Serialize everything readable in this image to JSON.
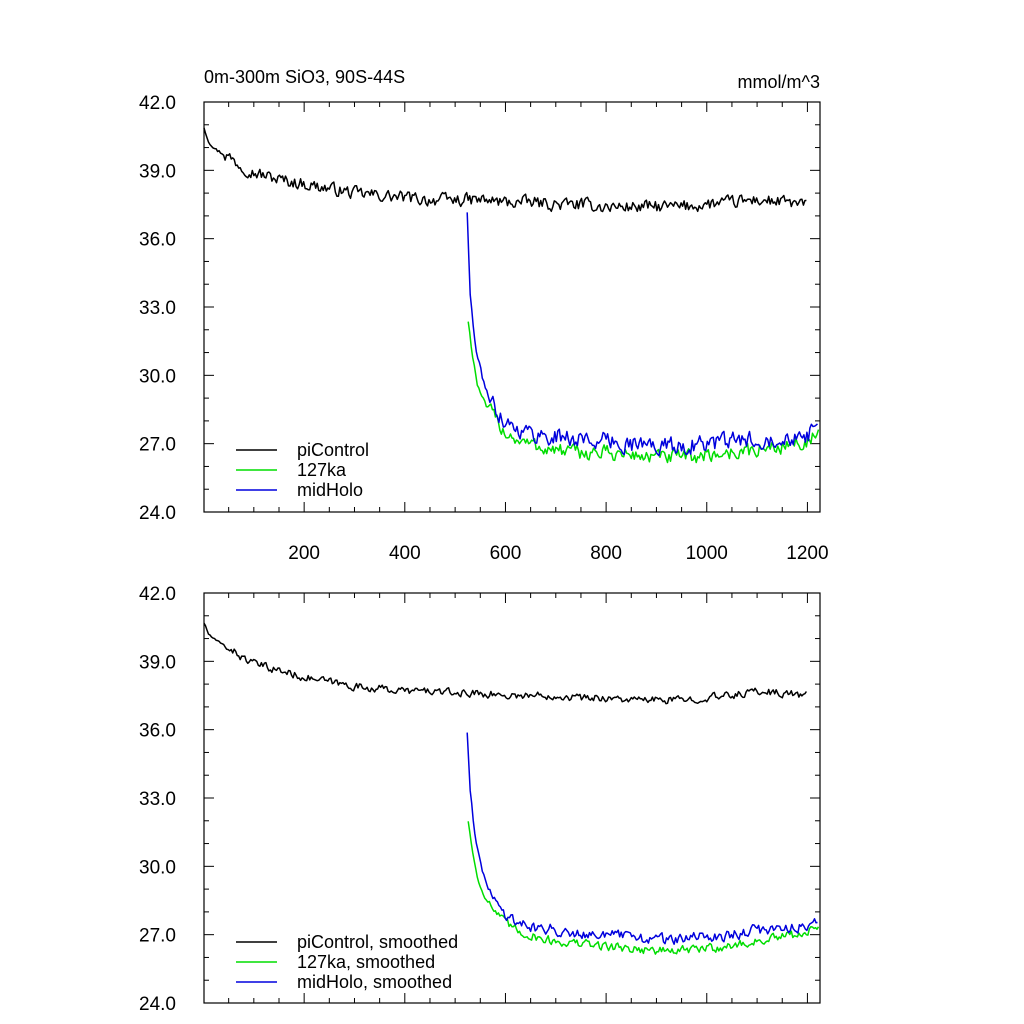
{
  "chart_data": [
    {
      "type": "line",
      "title": "0m-300m SiO3, 90S-44S",
      "units": "mmol/m^3",
      "xlim": [
        1,
        1225
      ],
      "ylim": [
        24,
        42
      ],
      "yticks": [
        "24.0",
        "27.0",
        "30.0",
        "33.0",
        "36.0",
        "39.0",
        "42.0"
      ],
      "xticks": [
        "200",
        "400",
        "600",
        "800",
        "1000",
        "1200"
      ],
      "legend_position": "bottom-left",
      "series": [
        {
          "name": "piControl",
          "color": "#000000",
          "x": [
            1,
            10,
            25,
            50,
            75,
            100,
            150,
            200,
            250,
            300,
            350,
            400,
            450,
            500,
            550,
            600,
            650,
            700,
            750,
            800,
            850,
            900,
            950,
            1000,
            1050,
            1100,
            1150,
            1200
          ],
          "values": [
            40.9,
            40.3,
            39.9,
            39.6,
            39.2,
            38.9,
            38.6,
            38.4,
            38.2,
            38.0,
            37.9,
            37.8,
            37.7,
            37.7,
            37.7,
            37.6,
            37.6,
            37.5,
            37.5,
            37.4,
            37.4,
            37.4,
            37.4,
            37.5,
            37.6,
            37.7,
            37.6,
            37.5
          ],
          "noise": 0.25
        },
        {
          "name": "127ka",
          "color": "#00dd00",
          "x": [
            526,
            535,
            545,
            560,
            580,
            600,
            630,
            660,
            700,
            750,
            800,
            850,
            900,
            950,
            1000,
            1050,
            1100,
            1150,
            1200,
            1222
          ],
          "values": [
            32.4,
            30.8,
            29.5,
            28.7,
            28.1,
            27.5,
            27.1,
            26.9,
            26.7,
            26.6,
            26.6,
            26.5,
            26.4,
            26.4,
            26.5,
            26.6,
            26.7,
            26.9,
            27.1,
            27.4
          ],
          "noise": 0.3
        },
        {
          "name": "midHolo",
          "color": "#0000dd",
          "x": [
            524,
            530,
            540,
            555,
            575,
            600,
            630,
            660,
            700,
            750,
            800,
            850,
            900,
            950,
            1000,
            1050,
            1100,
            1150,
            1200,
            1222
          ],
          "values": [
            37.2,
            33.5,
            31.3,
            29.8,
            28.7,
            28.0,
            27.6,
            27.4,
            27.3,
            27.2,
            27.1,
            27.0,
            26.9,
            26.9,
            27.0,
            27.1,
            27.2,
            27.3,
            27.4,
            27.6
          ],
          "noise": 0.35
        }
      ]
    },
    {
      "type": "line",
      "title": "",
      "units": "",
      "xlim": [
        1,
        1225
      ],
      "ylim": [
        24,
        42
      ],
      "yticks": [
        "24.0",
        "27.0",
        "30.0",
        "33.0",
        "36.0",
        "39.0",
        "42.0"
      ],
      "xticks": [],
      "legend_position": "bottom-left",
      "series": [
        {
          "name": "piControl, smoothed",
          "color": "#000000",
          "x": [
            1,
            10,
            25,
            50,
            75,
            100,
            150,
            200,
            250,
            300,
            350,
            400,
            450,
            500,
            550,
            600,
            650,
            700,
            750,
            800,
            850,
            900,
            950,
            1000,
            1050,
            1100,
            1150,
            1200
          ],
          "values": [
            40.7,
            40.2,
            39.9,
            39.6,
            39.2,
            38.9,
            38.6,
            38.3,
            38.1,
            37.9,
            37.8,
            37.7,
            37.7,
            37.6,
            37.6,
            37.5,
            37.5,
            37.5,
            37.4,
            37.4,
            37.3,
            37.3,
            37.3,
            37.4,
            37.5,
            37.7,
            37.6,
            37.5
          ],
          "noise": 0.15
        },
        {
          "name": "127ka, smoothed",
          "color": "#00dd00",
          "x": [
            526,
            535,
            545,
            560,
            580,
            600,
            630,
            660,
            700,
            750,
            800,
            850,
            900,
            950,
            1000,
            1050,
            1100,
            1150,
            1200,
            1222
          ],
          "values": [
            32.0,
            30.6,
            29.4,
            28.6,
            28.0,
            27.5,
            27.1,
            26.9,
            26.7,
            26.6,
            26.5,
            26.4,
            26.3,
            26.3,
            26.4,
            26.5,
            26.7,
            26.9,
            27.1,
            27.4
          ],
          "noise": 0.18
        },
        {
          "name": "midHolo, smoothed",
          "color": "#0000dd",
          "x": [
            524,
            530,
            540,
            555,
            575,
            600,
            630,
            660,
            700,
            750,
            800,
            850,
            900,
            950,
            1000,
            1050,
            1100,
            1150,
            1200,
            1222
          ],
          "values": [
            35.9,
            33.4,
            31.2,
            29.7,
            28.6,
            27.9,
            27.5,
            27.3,
            27.2,
            27.1,
            27.0,
            26.9,
            26.8,
            26.8,
            26.9,
            27.0,
            27.2,
            27.3,
            27.4,
            27.6
          ],
          "noise": 0.22
        }
      ]
    }
  ]
}
